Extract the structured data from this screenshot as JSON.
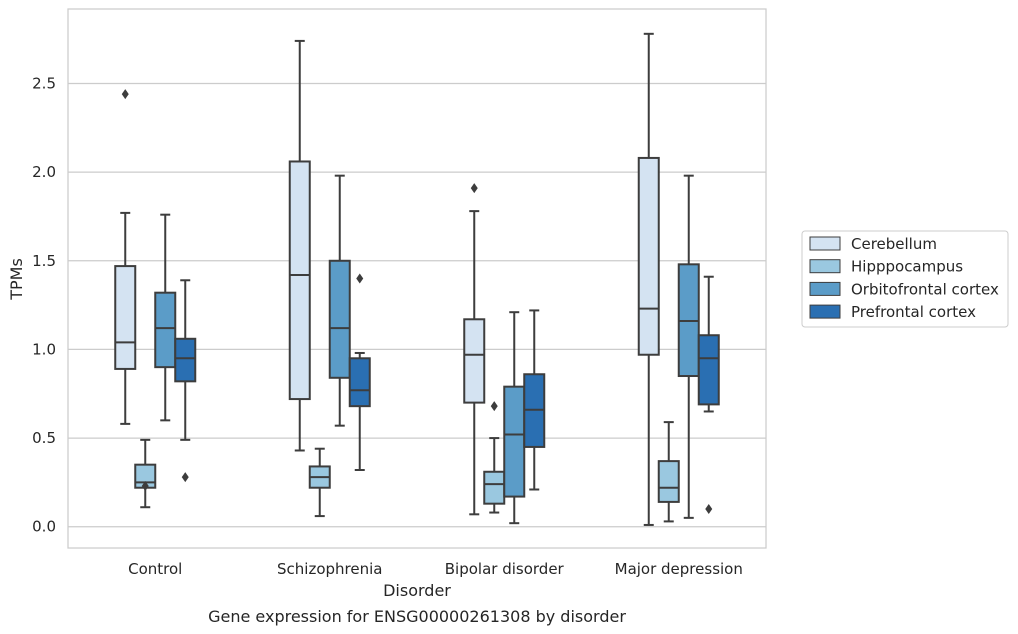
{
  "chart_data": {
    "type": "box",
    "caption": "Gene expression for ENSG00000261308 by disorder",
    "xlabel": "Disorder",
    "ylabel": "TPMs",
    "ylim": [
      -0.12,
      2.92
    ],
    "yticks": [
      0.0,
      0.5,
      1.0,
      1.5,
      2.0,
      2.5
    ],
    "ytick_labels": [
      "0.0",
      "0.5",
      "1.0",
      "1.5",
      "2.0",
      "2.5"
    ],
    "grid": true,
    "legend_position": "right",
    "categories": [
      "Control",
      "Schizophrenia",
      "Bipolar disorder",
      "Major depression"
    ],
    "series": [
      {
        "name": "Cerebellum",
        "color": "#d4e3f2",
        "boxes": [
          {
            "whisker_low": 0.58,
            "q1": 0.89,
            "median": 1.04,
            "q3": 1.47,
            "whisker_high": 1.77,
            "outliers": [
              2.44
            ]
          },
          {
            "whisker_low": 0.43,
            "q1": 0.72,
            "median": 1.42,
            "q3": 2.06,
            "whisker_high": 2.74,
            "outliers": []
          },
          {
            "whisker_low": 0.07,
            "q1": 0.7,
            "median": 0.97,
            "q3": 1.17,
            "whisker_high": 1.78,
            "outliers": [
              1.91
            ]
          },
          {
            "whisker_low": 0.01,
            "q1": 0.97,
            "median": 1.23,
            "q3": 2.08,
            "whisker_high": 2.78,
            "outliers": []
          }
        ]
      },
      {
        "name": "Hipppocampus",
        "color": "#9ac8e0",
        "boxes": [
          {
            "whisker_low": 0.11,
            "q1": 0.22,
            "median": 0.25,
            "q3": 0.35,
            "whisker_high": 0.49,
            "outliers": [
              0.23
            ]
          },
          {
            "whisker_low": 0.06,
            "q1": 0.22,
            "median": 0.28,
            "q3": 0.34,
            "whisker_high": 0.44,
            "outliers": []
          },
          {
            "whisker_low": 0.08,
            "q1": 0.13,
            "median": 0.24,
            "q3": 0.31,
            "whisker_high": 0.5,
            "outliers": [
              0.68
            ]
          },
          {
            "whisker_low": 0.03,
            "q1": 0.14,
            "median": 0.22,
            "q3": 0.37,
            "whisker_high": 0.59,
            "outliers": []
          }
        ]
      },
      {
        "name": "Orbitofrontal cortex",
        "color": "#5b9cc8",
        "boxes": [
          {
            "whisker_low": 0.6,
            "q1": 0.9,
            "median": 1.12,
            "q3": 1.32,
            "whisker_high": 1.76,
            "outliers": []
          },
          {
            "whisker_low": 0.57,
            "q1": 0.84,
            "median": 1.12,
            "q3": 1.5,
            "whisker_high": 1.98,
            "outliers": []
          },
          {
            "whisker_low": 0.02,
            "q1": 0.17,
            "median": 0.52,
            "q3": 0.79,
            "whisker_high": 1.21,
            "outliers": []
          },
          {
            "whisker_low": 0.05,
            "q1": 0.85,
            "median": 1.16,
            "q3": 1.48,
            "whisker_high": 1.98,
            "outliers": []
          }
        ]
      },
      {
        "name": "Prefrontal cortex",
        "color": "#2a6fb2",
        "boxes": [
          {
            "whisker_low": 0.49,
            "q1": 0.82,
            "median": 0.95,
            "q3": 1.06,
            "whisker_high": 1.39,
            "outliers": [
              0.28
            ]
          },
          {
            "whisker_low": 0.32,
            "q1": 0.68,
            "median": 0.77,
            "q3": 0.95,
            "whisker_high": 0.98,
            "outliers": [
              1.4
            ]
          },
          {
            "whisker_low": 0.21,
            "q1": 0.45,
            "median": 0.66,
            "q3": 0.86,
            "whisker_high": 1.22,
            "outliers": []
          },
          {
            "whisker_low": 0.65,
            "q1": 0.69,
            "median": 0.95,
            "q3": 1.08,
            "whisker_high": 1.41,
            "outliers": [
              0.1
            ]
          }
        ]
      }
    ]
  }
}
